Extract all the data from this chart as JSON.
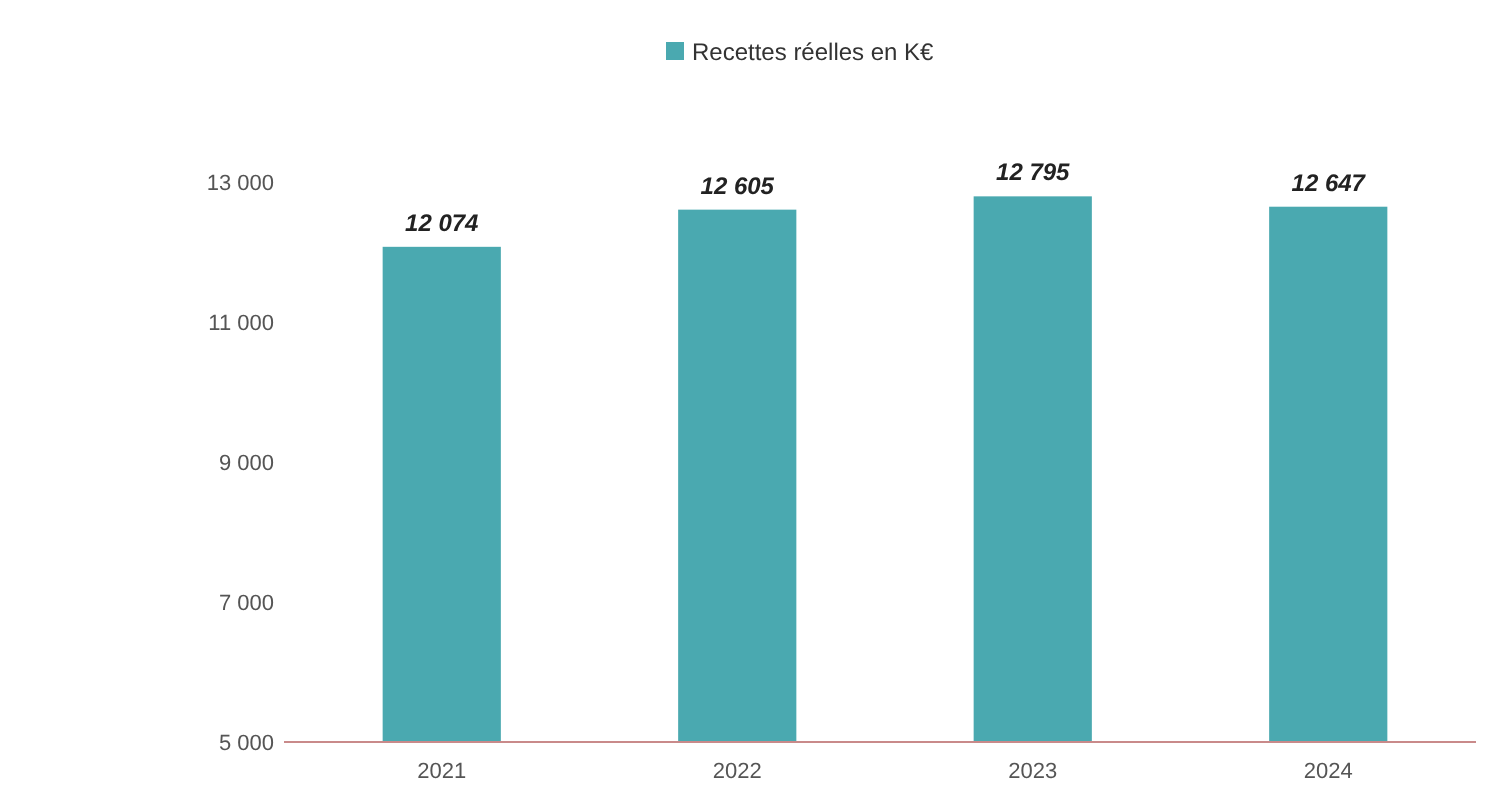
{
  "chart_data": {
    "type": "bar",
    "categories": [
      "2021",
      "2022",
      "2023",
      "2024"
    ],
    "series": [
      {
        "name": "Recettes réelles en K€",
        "color": "#4aa9b0",
        "values": [
          12074,
          12605,
          12795,
          12647
        ],
        "value_labels": [
          "12 074",
          "12 605",
          "12 795",
          "12 647"
        ]
      }
    ],
    "ylim": [
      5000,
      13000
    ],
    "yticks": [
      {
        "value": 5000,
        "label": "5 000"
      },
      {
        "value": 7000,
        "label": "7 000"
      },
      {
        "value": 9000,
        "label": "9 000"
      },
      {
        "value": 11000,
        "label": "11 000"
      },
      {
        "value": 13000,
        "label": "13 000"
      }
    ],
    "grid": false,
    "legend": "top"
  }
}
